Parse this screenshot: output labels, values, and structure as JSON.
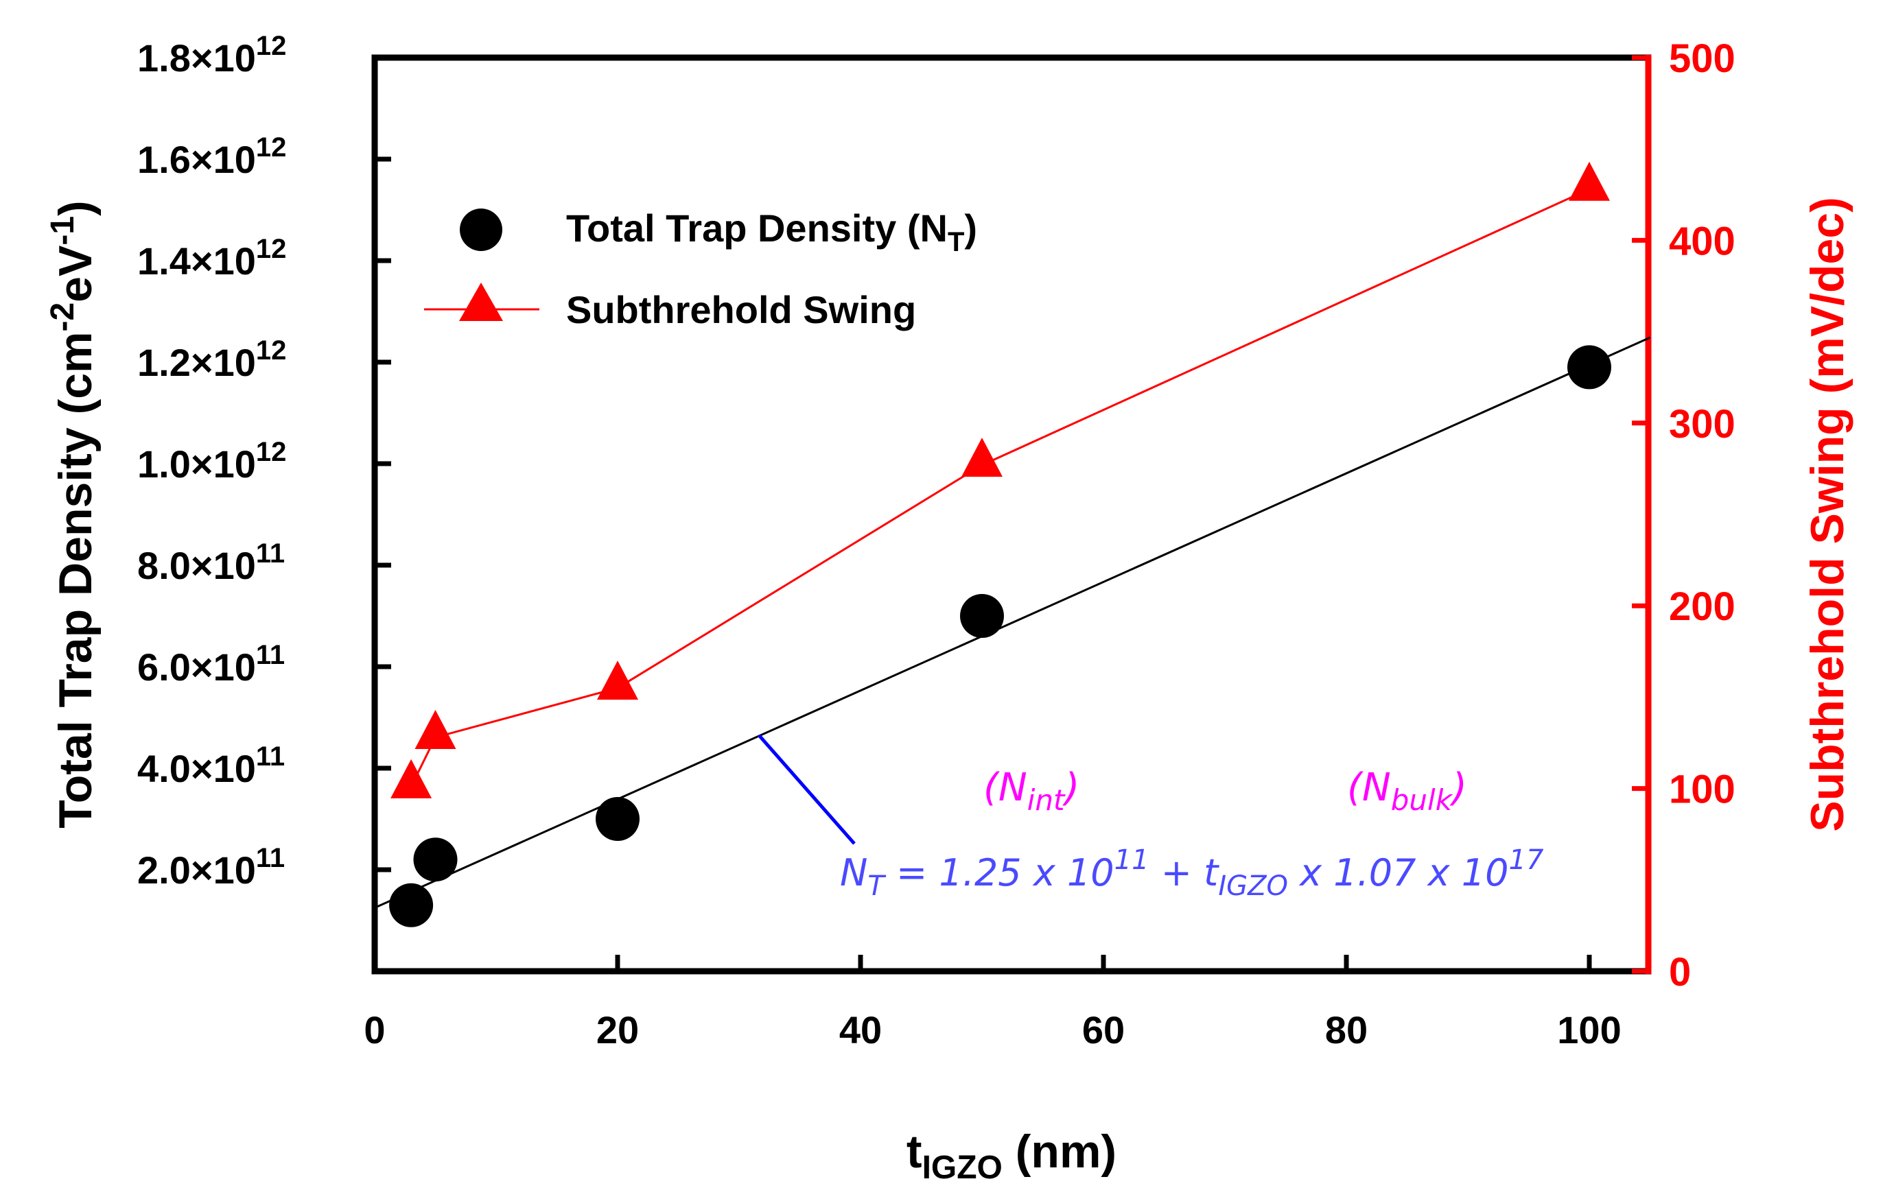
{
  "chart_data": {
    "type": "scatter",
    "x_axis": {
      "label_main": "t",
      "label_sub": "IGZO",
      "label_unit": " (nm)",
      "range": [
        0,
        105
      ],
      "ticks": [
        0,
        20,
        40,
        60,
        80,
        100
      ],
      "tick_labels": [
        "0",
        "20",
        "40",
        "60",
        "80",
        "100"
      ]
    },
    "y_left": {
      "label_main": "Total Trap Density (cm",
      "label_sup1": "-2",
      "label_mid": "eV",
      "label_sup2": "-1",
      "label_end": ")",
      "range": [
        0,
        1800000000000.0
      ],
      "ticks": [
        200000000000.0,
        400000000000.0,
        600000000000.0,
        800000000000.0,
        1000000000000.0,
        1200000000000.0,
        1400000000000.0,
        1600000000000.0,
        1800000000000.0
      ],
      "tick_mantissas": [
        "2.0",
        "4.0",
        "6.0",
        "8.0",
        "1.0",
        "1.2",
        "1.4",
        "1.6",
        "1.8"
      ],
      "tick_times": "×10",
      "tick_exponents": [
        "11",
        "11",
        "11",
        "11",
        "12",
        "12",
        "12",
        "12",
        "12"
      ],
      "color": "#000000"
    },
    "y_right": {
      "label": "Subthrehold Swing (mV/dec)",
      "range": [
        0,
        500
      ],
      "ticks": [
        0,
        100,
        200,
        300,
        400,
        500
      ],
      "tick_labels": [
        "0",
        "100",
        "200",
        "300",
        "400",
        "500"
      ],
      "color": "#ff0000"
    },
    "series": [
      {
        "name": "Total Trap Density (N",
        "name_sub": "T",
        "name_end": ")",
        "axis": "left",
        "marker": "circle",
        "color": "#000000",
        "x": [
          3,
          5,
          20,
          50,
          100
        ],
        "y": [
          130000000000.0,
          220000000000.0,
          300000000000.0,
          700000000000.0,
          1190000000000.0
        ]
      },
      {
        "name": "Subthrehold Swing",
        "axis": "right",
        "marker": "triangle",
        "line": true,
        "color": "#ff0000",
        "x": [
          3,
          5,
          20,
          50,
          100
        ],
        "y": [
          101,
          128,
          155,
          277,
          428
        ]
      }
    ],
    "fit_line": {
      "intercept": 125000000000.0,
      "slope_per_nm": 10700000000.0,
      "x_range": [
        0,
        105
      ],
      "color": "#000000"
    },
    "equation": {
      "p1": "N",
      "p1_sub": "T",
      "p2": " = 1.25 x 10",
      "p2_sup": "11",
      "p3": " + t",
      "p3_sub": "IGZO",
      "p4": " x 1.07 x 10",
      "p4_sup": "17",
      "color": "#4a4aff"
    },
    "annotations": [
      {
        "paren_open": "(N",
        "sub": "int",
        "paren_close": ")"
      },
      {
        "paren_open": "(N",
        "sub": "bulk",
        "paren_close": ")"
      }
    ],
    "pointer_color": "#0000ff",
    "annotation_color": "#ff00ff"
  }
}
